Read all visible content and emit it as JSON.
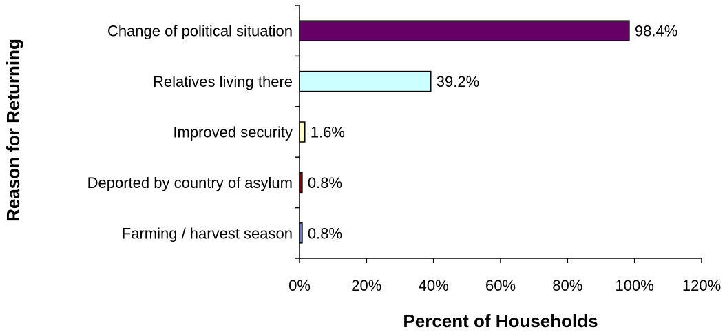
{
  "chart_data": {
    "type": "bar",
    "orientation": "horizontal",
    "categories": [
      "Change of political situation",
      "Relatives living there",
      "Improved security",
      "Deported by country of asylum",
      "Farming / harvest season"
    ],
    "values": [
      98.4,
      39.2,
      1.6,
      0.8,
      0.8
    ],
    "data_labels": [
      "98.4%",
      "39.2%",
      "1.6%",
      "0.8%",
      "0.8%"
    ],
    "bar_colors": [
      "#660066",
      "#ccffff",
      "#ffffcc",
      "#800000",
      "#6b7bc4"
    ],
    "xlabel": "Percent of Households",
    "ylabel": "Reason for Returning",
    "xlim": [
      0,
      120
    ],
    "x_ticks": [
      0,
      20,
      40,
      60,
      80,
      100,
      120
    ],
    "x_tick_labels": [
      "0%",
      "20%",
      "40%",
      "60%",
      "80%",
      "100%",
      "120%"
    ],
    "grid": false,
    "legend": "none"
  }
}
